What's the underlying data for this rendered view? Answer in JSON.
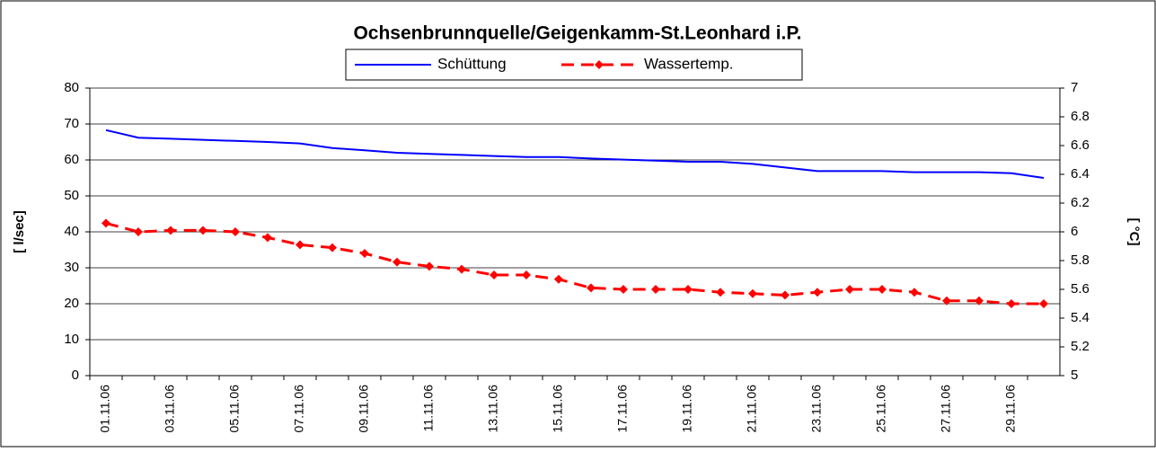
{
  "chart_data": {
    "type": "line",
    "title": "Ochsenbrunnquelle/Geigenkamm-St.Leonhard i.P.",
    "ylabel": "[ l/sec]",
    "y2label": "[ °C]",
    "categories": [
      "01.11.06",
      null,
      "03.11.06",
      null,
      "05.11.06",
      null,
      "07.11.06",
      null,
      "09.11.06",
      null,
      "11.11.06",
      null,
      "13.11.06",
      null,
      "15.11.06",
      null,
      "17.11.06",
      null,
      "19.11.06",
      null,
      "21.11.06",
      null,
      "23.11.06",
      null,
      "25.11.06",
      null,
      "27.11.06",
      null,
      "29.11.06",
      null
    ],
    "series": [
      {
        "name": "Schüttung",
        "color": "#0000ff",
        "values": [
          68.3,
          66.2,
          65.9,
          65.6,
          65.3,
          65.0,
          64.6,
          63.3,
          62.7,
          62.0,
          61.7,
          61.4,
          61.1,
          60.8,
          60.8,
          60.4,
          60.1,
          59.8,
          59.5,
          59.5,
          58.9,
          57.9,
          56.9,
          56.9,
          56.9,
          56.6,
          56.6,
          56.6,
          56.3,
          55.0
        ]
      },
      {
        "name": "Wassertemp.",
        "color": "#ff0000",
        "axis": "y2",
        "values": [
          6.06,
          6.0,
          6.01,
          6.01,
          6.0,
          5.96,
          5.91,
          5.89,
          5.85,
          5.79,
          5.76,
          5.74,
          5.7,
          5.7,
          5.67,
          5.61,
          5.6,
          5.6,
          5.6,
          5.58,
          5.57,
          5.56,
          5.58,
          5.6,
          5.6,
          5.58,
          5.52,
          5.52,
          5.5,
          5.5
        ]
      }
    ],
    "ylim": [
      0,
      80
    ],
    "yticks": [
      0,
      10,
      20,
      30,
      40,
      50,
      60,
      70,
      80
    ],
    "y2lim": [
      5,
      7
    ],
    "y2ticks": [
      5,
      5.2,
      5.4,
      5.6,
      5.8,
      6,
      6.2,
      6.4,
      6.6,
      6.8,
      7
    ],
    "grid": true,
    "legend": "top"
  }
}
